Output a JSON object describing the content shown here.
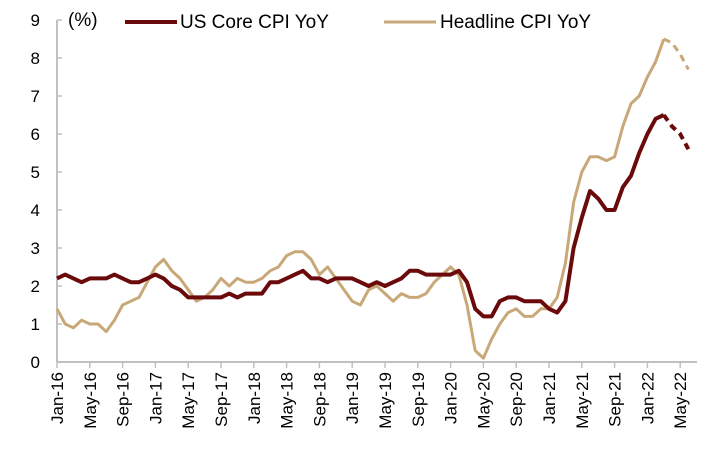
{
  "chart_data": {
    "type": "line",
    "title": "",
    "unit_label": "(%)",
    "xlabel": "",
    "ylabel": "(%)",
    "ylim": [
      0,
      9
    ],
    "yticks": [
      "0",
      "1",
      "2",
      "3",
      "4",
      "5",
      "6",
      "7",
      "8",
      "9"
    ],
    "xtick_labels": [
      "Jan-16",
      "May-16",
      "Sep-16",
      "Jan-17",
      "May-17",
      "Sep-17",
      "Jan-18",
      "May-18",
      "Sep-18",
      "Jan-19",
      "May-19",
      "Sep-19",
      "Jan-20",
      "May-20",
      "Sep-20",
      "Jan-21",
      "May-21",
      "Sep-21",
      "Jan-22",
      "May-22"
    ],
    "x_start": "Jan-16",
    "dashed_from_index": 74,
    "legend": "top",
    "grid": false,
    "colors": {
      "core": "#6b0a0a",
      "headline": "#c8a878",
      "axis": "#c0c0c0"
    },
    "series": [
      {
        "name": "US Core CPI YoY",
        "key": "core",
        "values": [
          2.2,
          2.3,
          2.2,
          2.1,
          2.2,
          2.2,
          2.2,
          2.3,
          2.2,
          2.1,
          2.1,
          2.2,
          2.3,
          2.2,
          2.0,
          1.9,
          1.7,
          1.7,
          1.7,
          1.7,
          1.7,
          1.8,
          1.7,
          1.8,
          1.8,
          1.8,
          2.1,
          2.1,
          2.2,
          2.3,
          2.4,
          2.2,
          2.2,
          2.1,
          2.2,
          2.2,
          2.2,
          2.1,
          2.0,
          2.1,
          2.0,
          2.1,
          2.2,
          2.4,
          2.4,
          2.3,
          2.3,
          2.3,
          2.3,
          2.4,
          2.1,
          1.4,
          1.2,
          1.2,
          1.6,
          1.7,
          1.7,
          1.6,
          1.6,
          1.6,
          1.4,
          1.3,
          1.6,
          3.0,
          3.8,
          4.5,
          4.3,
          4.0,
          4.0,
          4.6,
          4.9,
          5.5,
          6.0,
          6.4,
          6.5,
          6.2,
          6.0,
          5.6
        ]
      },
      {
        "name": "Headline CPI YoY",
        "key": "headline",
        "values": [
          1.4,
          1.0,
          0.9,
          1.1,
          1.0,
          1.0,
          0.8,
          1.1,
          1.5,
          1.6,
          1.7,
          2.1,
          2.5,
          2.7,
          2.4,
          2.2,
          1.9,
          1.6,
          1.7,
          1.9,
          2.2,
          2.0,
          2.2,
          2.1,
          2.1,
          2.2,
          2.4,
          2.5,
          2.8,
          2.9,
          2.9,
          2.7,
          2.3,
          2.5,
          2.2,
          1.9,
          1.6,
          1.5,
          1.9,
          2.0,
          1.8,
          1.6,
          1.8,
          1.7,
          1.7,
          1.8,
          2.1,
          2.3,
          2.5,
          2.3,
          1.5,
          0.3,
          0.1,
          0.6,
          1.0,
          1.3,
          1.4,
          1.2,
          1.2,
          1.4,
          1.4,
          1.7,
          2.6,
          4.2,
          5.0,
          5.4,
          5.4,
          5.3,
          5.4,
          6.2,
          6.8,
          7.0,
          7.5,
          7.9,
          8.5,
          8.4,
          8.1,
          7.7
        ]
      }
    ]
  }
}
